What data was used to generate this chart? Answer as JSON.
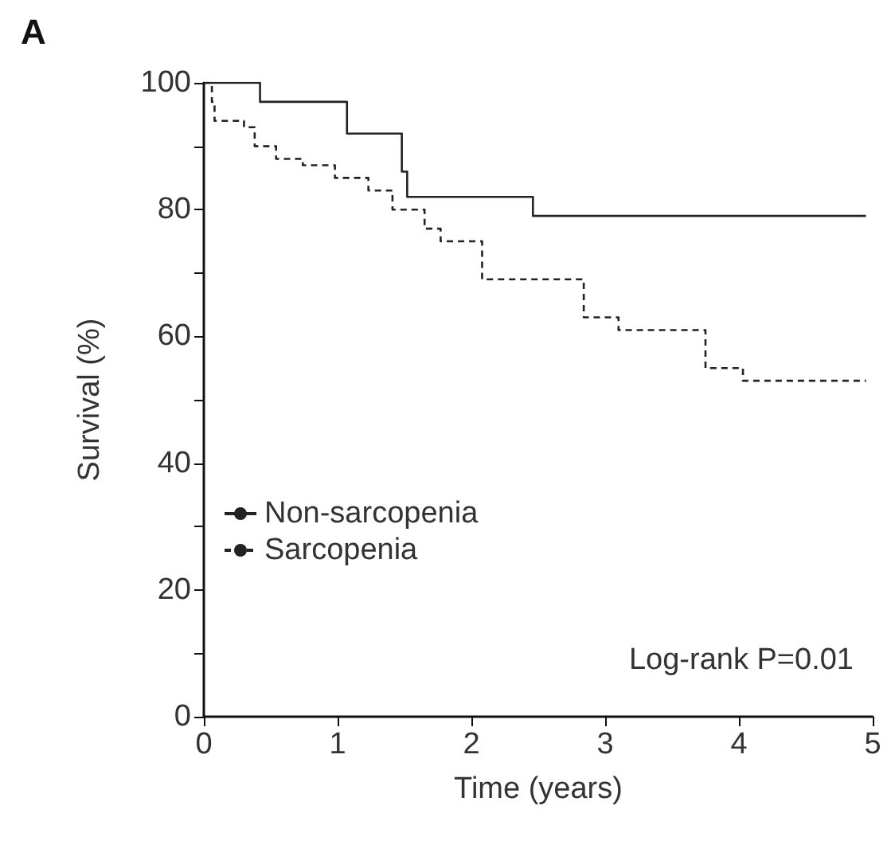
{
  "chart_data": {
    "type": "step",
    "title": "A",
    "xlabel": "Time (years)",
    "ylabel": "Survival (%)",
    "series": [
      {
        "name": "Non-sarcopenia",
        "color": "#222222",
        "line_style": "solid",
        "x": [
          0,
          0.42,
          1.07,
          1.48,
          1.52,
          2.46,
          4.95
        ],
        "values": [
          100,
          97,
          92,
          86,
          82,
          79,
          79
        ]
      },
      {
        "name": "Sarcopenia",
        "color": "#222222",
        "line_style": "dashed",
        "x": [
          0,
          0.06,
          0.08,
          0.3,
          0.38,
          0.54,
          0.74,
          0.98,
          1.23,
          1.41,
          1.65,
          1.77,
          2.08,
          2.84,
          3.1,
          3.75,
          4.03,
          4.95
        ],
        "values": [
          100,
          97,
          94,
          93,
          90,
          88,
          87,
          85,
          83,
          80,
          77,
          75,
          69,
          63,
          61,
          55,
          53,
          53
        ]
      }
    ],
    "xlim": [
      0,
      5
    ],
    "xticks": [
      0,
      1,
      2,
      3,
      4,
      5
    ],
    "ylim": [
      0,
      100
    ],
    "yticks": [
      0,
      {
        "value": 10,
        "label": null
      },
      20,
      {
        "value": 30,
        "label": null
      },
      40,
      {
        "value": 50,
        "label": null
      },
      60,
      {
        "value": 70,
        "label": null
      },
      80,
      {
        "value": 90,
        "label": null
      },
      100
    ],
    "grid": false,
    "legend": "left",
    "annotations": [
      "Log-rank P=0.01"
    ]
  }
}
